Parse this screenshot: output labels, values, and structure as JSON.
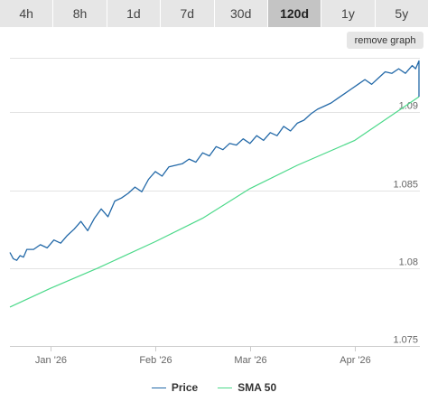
{
  "range_selector": {
    "options": [
      "4h",
      "8h",
      "1d",
      "7d",
      "30d",
      "120d",
      "1y",
      "5y"
    ],
    "selected": "120d"
  },
  "remove_graph_label": "remove graph",
  "colors": {
    "price": "#2369a8",
    "sma": "#4cd98a",
    "grid": "#e3e3e3",
    "axis_text": "#666666",
    "active_tab": "#c4c4c4",
    "tab": "#e6e6e6"
  },
  "chart_data": {
    "type": "line",
    "title": "",
    "xlabel": "",
    "ylabel": "",
    "x_type": "date",
    "xlim": [
      "2025-12-20",
      "2026-04-20"
    ],
    "ylim": [
      1.075,
      1.0935
    ],
    "ytick_values": [
      1.075,
      1.08,
      1.085,
      1.09
    ],
    "yticks": [
      "1.075",
      "1.08",
      "1.085",
      "1.09"
    ],
    "xtick_dates": [
      "2026-01-01",
      "2026-02-01",
      "2026-03-01",
      "2026-04-01"
    ],
    "xticks": [
      "Jan '26",
      "Feb '26",
      "Mar '26",
      "Apr '26"
    ],
    "grid": "horizontal",
    "legend": "bottom-center",
    "series": [
      {
        "name": "Price",
        "color": "#2369a8",
        "x": [
          "2025-12-20",
          "2025-12-21",
          "2025-12-22",
          "2025-12-23",
          "2025-12-24",
          "2025-12-25",
          "2025-12-27",
          "2025-12-29",
          "2025-12-31",
          "2026-01-02",
          "2026-01-04",
          "2026-01-06",
          "2026-01-08",
          "2026-01-10",
          "2026-01-12",
          "2026-01-14",
          "2026-01-16",
          "2026-01-18",
          "2026-01-20",
          "2026-01-22",
          "2026-01-24",
          "2026-01-26",
          "2026-01-28",
          "2026-01-30",
          "2026-02-01",
          "2026-02-03",
          "2026-02-05",
          "2026-02-07",
          "2026-02-09",
          "2026-02-11",
          "2026-02-13",
          "2026-02-15",
          "2026-02-17",
          "2026-02-19",
          "2026-02-21",
          "2026-02-23",
          "2026-02-25",
          "2026-02-27",
          "2026-03-01",
          "2026-03-03",
          "2026-03-05",
          "2026-03-07",
          "2026-03-09",
          "2026-03-11",
          "2026-03-13",
          "2026-03-15",
          "2026-03-17",
          "2026-03-19",
          "2026-03-21",
          "2026-03-23",
          "2026-03-25",
          "2026-03-27",
          "2026-03-29",
          "2026-03-31",
          "2026-04-02",
          "2026-04-04",
          "2026-04-06",
          "2026-04-08",
          "2026-04-10",
          "2026-04-12",
          "2026-04-14",
          "2026-04-16",
          "2026-04-18",
          "2026-04-19",
          "2026-04-20",
          "2026-04-20"
        ],
        "y": [
          1.081,
          1.0806,
          1.0805,
          1.0808,
          1.0807,
          1.0812,
          1.0812,
          1.0815,
          1.0813,
          1.0818,
          1.0816,
          1.0821,
          1.0825,
          1.083,
          1.0824,
          1.0832,
          1.0838,
          1.0833,
          1.0843,
          1.0845,
          1.0848,
          1.0852,
          1.0849,
          1.0857,
          1.0862,
          1.0859,
          1.0865,
          1.0866,
          1.0867,
          1.087,
          1.0868,
          1.0874,
          1.0872,
          1.0878,
          1.0876,
          1.088,
          1.0879,
          1.0883,
          1.088,
          1.0885,
          1.0882,
          1.0887,
          1.0885,
          1.0891,
          1.0888,
          1.0893,
          1.0895,
          1.0899,
          1.0902,
          1.0904,
          1.0906,
          1.0909,
          1.0912,
          1.0915,
          1.0918,
          1.0921,
          1.0918,
          1.0922,
          1.0926,
          1.0925,
          1.0928,
          1.0925,
          1.093,
          1.0928,
          1.0933,
          1.091
        ]
      },
      {
        "name": "SMA 50",
        "color": "#4cd98a",
        "x": [
          "2025-12-20",
          "2026-01-01",
          "2026-01-15",
          "2026-02-01",
          "2026-02-15",
          "2026-03-01",
          "2026-03-15",
          "2026-04-01",
          "2026-04-20"
        ],
        "y": [
          1.0775,
          1.0787,
          1.08,
          1.0817,
          1.0832,
          1.0851,
          1.0866,
          1.0882,
          1.091
        ]
      }
    ]
  }
}
